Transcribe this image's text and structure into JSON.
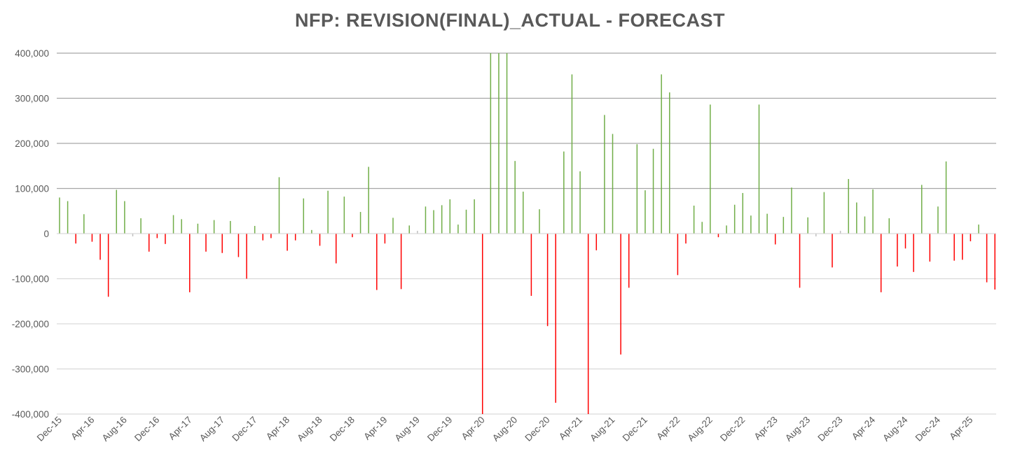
{
  "chart_data": {
    "type": "bar",
    "title": "NFP: REVISION(FINAL)_ACTUAL - FORECAST",
    "xlabel": "",
    "ylabel": "",
    "ylim": [
      -400000,
      400000
    ],
    "y_ticks": [
      400000,
      300000,
      200000,
      100000,
      0,
      -100000,
      -200000,
      -300000,
      -400000
    ],
    "y_tick_labels": [
      "400,000",
      "300,000",
      "200,000",
      "100,000",
      "0",
      "-100,000",
      "-200,000",
      "-300,000",
      "-400,000"
    ],
    "x_tick_labels": [
      "Dec-15",
      "Apr-16",
      "Aug-16",
      "Dec-16",
      "Apr-17",
      "Aug-17",
      "Dec-17",
      "Apr-18",
      "Aug-18",
      "Dec-18",
      "Apr-19",
      "Aug-19",
      "Dec-19",
      "Apr-20",
      "Aug-20",
      "Dec-20",
      "Apr-21",
      "Aug-21",
      "Dec-21",
      "Apr-22",
      "Aug-22",
      "Dec-22",
      "Apr-23",
      "Aug-23",
      "Dec-23",
      "Apr-24",
      "Aug-24",
      "Dec-24",
      "Apr-25"
    ],
    "x_tick_every": 4,
    "grid": true,
    "legend": "none",
    "positive_color": "#70ad47",
    "negative_color": "#ff0000",
    "zero_color": "#bfbfbf",
    "gridline_major_color": "#a6a6a6",
    "gridline_minor_color": "#d9d9d9",
    "series": [
      {
        "name": "Revision(Final) Actual - Forecast",
        "values": [
          80000,
          72000,
          -22000,
          43000,
          -18000,
          -58000,
          -140000,
          97000,
          72000,
          -5000,
          34000,
          -40000,
          -10000,
          -23000,
          41000,
          32000,
          -130000,
          22000,
          -40000,
          30000,
          -43000,
          28000,
          -52000,
          -100000,
          17000,
          -15000,
          -10000,
          125000,
          -38000,
          -15000,
          78000,
          8000,
          -27000,
          95000,
          -66000,
          82000,
          -8000,
          48000,
          148000,
          -125000,
          -22000,
          35000,
          -123000,
          18000,
          3000,
          60000,
          52000,
          63000,
          76000,
          20000,
          53000,
          76000,
          -400000,
          400000,
          400000,
          400000,
          161000,
          93000,
          -138000,
          54000,
          -205000,
          -375000,
          182000,
          353000,
          138000,
          -400000,
          -37000,
          263000,
          221000,
          -268000,
          -120000,
          198000,
          96000,
          188000,
          353000,
          313000,
          -92000,
          -22000,
          62000,
          26000,
          286000,
          -8000,
          18000,
          64000,
          90000,
          40000,
          286000,
          44000,
          -24000,
          37000,
          102000,
          -120000,
          36000,
          -5000,
          92000,
          -75000,
          3000,
          121000,
          69000,
          38000,
          98000,
          -130000,
          34000,
          -73000,
          -33000,
          -85000,
          108000,
          -62000,
          60000,
          160000,
          -60000,
          -58000,
          -17000,
          20000,
          -108000,
          -124000
        ]
      }
    ]
  }
}
